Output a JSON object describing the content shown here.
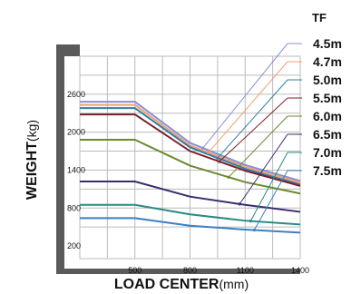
{
  "chart_data": {
    "type": "line",
    "title": "",
    "xlabel": "LOAD CENTER",
    "xlabel_unit": "(mm)",
    "ylabel": "WEIGHT",
    "ylabel_unit": "(kg)",
    "legend_title": "TF",
    "x_ticks": [
      500,
      800,
      1100,
      1400
    ],
    "y_ticks": [
      200,
      800,
      1400,
      2000,
      2600
    ],
    "xlim": [
      200,
      1400
    ],
    "ylim": [
      0,
      3200
    ],
    "grid": true,
    "x": [
      200,
      500,
      800,
      1100,
      1400
    ],
    "series": [
      {
        "name": "4.5m",
        "color": "#8a8fd9",
        "values": [
          2480,
          2480,
          1830,
          1480,
          1230
        ]
      },
      {
        "name": "4.7m",
        "color": "#f0a071",
        "values": [
          2430,
          2430,
          1790,
          1450,
          1200
        ]
      },
      {
        "name": "5.0m",
        "color": "#2f7fa6",
        "values": [
          2380,
          2380,
          1760,
          1420,
          1170
        ]
      },
      {
        "name": "5.5m",
        "color": "#7a1f2e",
        "values": [
          2280,
          2280,
          1700,
          1390,
          1150
        ]
      },
      {
        "name": "6.0m",
        "color": "#6a8a2e",
        "values": [
          1880,
          1880,
          1470,
          1210,
          1030
        ]
      },
      {
        "name": "6.5m",
        "color": "#3d2a6e",
        "values": [
          1220,
          1220,
          980,
          850,
          740
        ]
      },
      {
        "name": "7.0m",
        "color": "#2a8a83",
        "values": [
          850,
          850,
          700,
          600,
          540
        ]
      },
      {
        "name": "7.5m",
        "color": "#3a7fc4",
        "values": [
          640,
          640,
          520,
          460,
          410
        ]
      }
    ]
  }
}
